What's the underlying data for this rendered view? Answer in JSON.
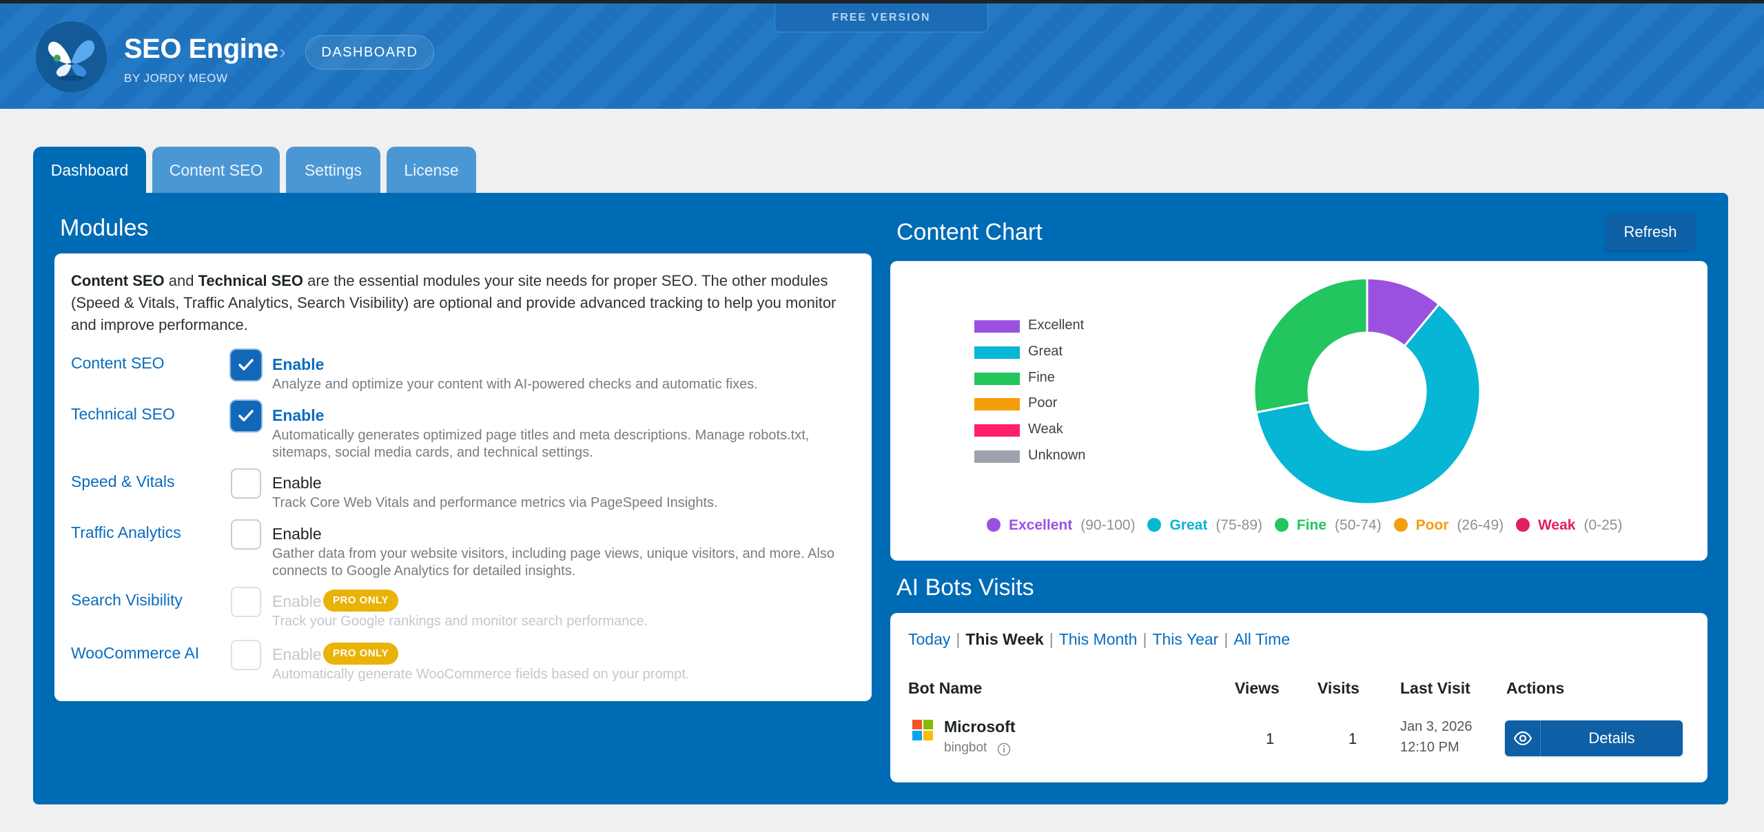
{
  "header": {
    "title": "SEO Engine",
    "byline": "BY JORDY MEOW",
    "breadcrumb_sep": "›",
    "breadcrumb": "DASHBOARD",
    "version_badge": "FREE VERSION",
    "brand_color": "#1e72bd",
    "logo_icon": "butterfly-logo-icon"
  },
  "tabs": [
    {
      "label": "Dashboard",
      "active": true
    },
    {
      "label": "Content SEO",
      "active": false
    },
    {
      "label": "Settings",
      "active": false
    },
    {
      "label": "License",
      "active": false
    }
  ],
  "modules": {
    "title": "Modules",
    "intro_bold1": "Content SEO",
    "intro_and": " and ",
    "intro_bold2": "Technical SEO",
    "intro_rest": " are the essential modules your site needs for proper SEO. The other modules (Speed & Vitals, Traffic Analytics, Search Visibility) are optional and provide advanced tracking to help you monitor and improve performance.",
    "items": [
      {
        "name": "Content SEO",
        "label": "Enable",
        "checked": true,
        "disabled": false,
        "desc": "Analyze and optimize your content with AI-powered checks and automatic fixes."
      },
      {
        "name": "Technical SEO",
        "label": "Enable",
        "checked": true,
        "disabled": false,
        "desc": "Automatically generates optimized page titles and meta descriptions. Manage robots.txt, sitemaps, social media cards, and technical settings."
      },
      {
        "name": "Speed & Vitals",
        "label": "Enable",
        "checked": false,
        "disabled": false,
        "desc": "Track Core Web Vitals and performance metrics via PageSpeed Insights."
      },
      {
        "name": "Traffic Analytics",
        "label": "Enable",
        "checked": false,
        "disabled": false,
        "desc": "Gather data from your website visitors, including page views, unique visitors, and more. Also connects to Google Analytics for detailed insights."
      },
      {
        "name": "Search Visibility",
        "label": "Enable",
        "checked": false,
        "disabled": true,
        "badge": "PRO ONLY",
        "desc": "Track your Google rankings and monitor search performance."
      },
      {
        "name": "WooCommerce AI",
        "label": "Enable",
        "checked": false,
        "disabled": true,
        "badge": "PRO ONLY",
        "desc": "Automatically generate WooCommerce fields based on your prompt."
      }
    ]
  },
  "content_chart": {
    "title": "Content Chart",
    "refresh_label": "Refresh",
    "ranges": [
      {
        "name": "Excellent",
        "range": "(90-100)",
        "color": "#9b51e0"
      },
      {
        "name": "Great",
        "range": "(75-89)",
        "color": "#06b6d4"
      },
      {
        "name": "Fine",
        "range": "(50-74)",
        "color": "#22c55e"
      },
      {
        "name": "Poor",
        "range": "(26-49)",
        "color": "#f59e0b"
      },
      {
        "name": "Weak",
        "range": "(0-25)",
        "color": "#e11d64"
      }
    ]
  },
  "chart_data": {
    "type": "pie",
    "title": "Content Chart",
    "categories": [
      "Excellent",
      "Great",
      "Fine",
      "Poor",
      "Weak",
      "Unknown"
    ],
    "values": [
      11,
      61,
      28,
      0,
      0,
      0
    ],
    "colors": [
      "#9b51e0",
      "#06b6d4",
      "#22c55e",
      "#f59e0b",
      "#ff1f6a",
      "#9ca3af"
    ],
    "legend": "left"
  },
  "bots": {
    "title": "AI Bots Visits",
    "periods": [
      {
        "label": "Today",
        "active": false
      },
      {
        "label": "This Week",
        "active": true
      },
      {
        "label": "This Month",
        "active": false
      },
      {
        "label": "This Year",
        "active": false
      },
      {
        "label": "All Time",
        "active": false
      }
    ],
    "columns": [
      "Bot Name",
      "Views",
      "Visits",
      "Last Visit",
      "Actions"
    ],
    "rows": [
      {
        "name": "Microsoft",
        "agent": "bingbot",
        "views": "1",
        "visits": "1",
        "last_date": "Jan 3, 2026",
        "last_time": "12:10 PM",
        "action": "Details"
      }
    ]
  }
}
